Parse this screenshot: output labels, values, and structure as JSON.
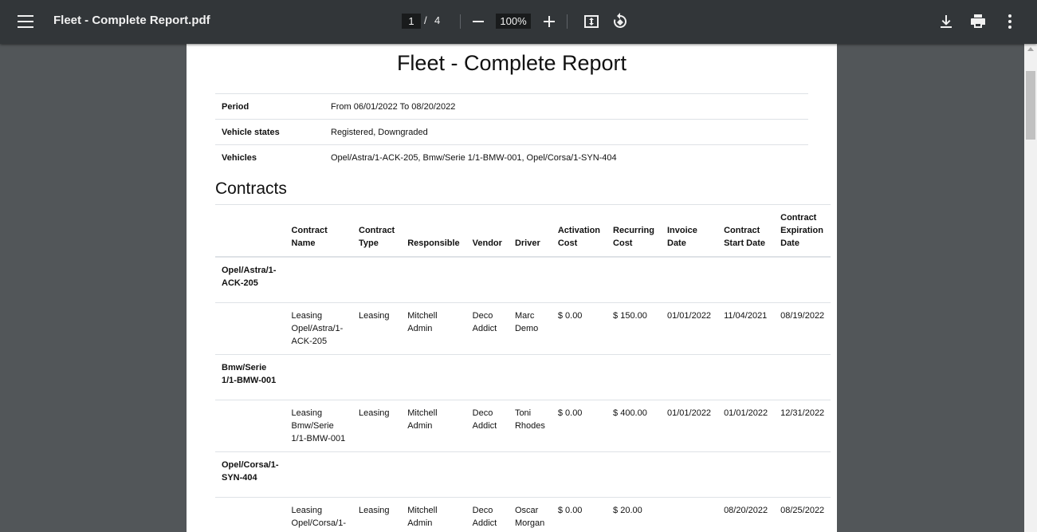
{
  "toolbar": {
    "title": "Fleet - Complete Report.pdf",
    "page_current": "1",
    "page_sep": "/",
    "page_total": "4",
    "zoom": "100%",
    "icons": [
      "menu-icon",
      "zoom-out-icon",
      "zoom-in-icon",
      "fit-page-icon",
      "rotate-icon",
      "download-icon",
      "print-icon",
      "more-icon"
    ]
  },
  "document": {
    "title": "Fleet - Complete Report",
    "summary": [
      {
        "key": "Period",
        "value": "From 06/01/2022 To 08/20/2022"
      },
      {
        "key": "Vehicle states",
        "value": "Registered, Downgraded"
      },
      {
        "key": "Vehicles",
        "value": "Opel/Astra/1-ACK-205, Bmw/Serie 1/1-BMW-001, Opel/Corsa/1-SYN-404"
      }
    ],
    "section_title": "Contracts",
    "headers": [
      "",
      "Contract Name",
      "Contract Type",
      "Responsible",
      "Vendor",
      "Driver",
      "Activation Cost",
      "Recurring Cost",
      "Invoice Date",
      "Contract Start Date",
      "Contract Expiration Date"
    ],
    "groups": [
      {
        "vehicle": "Opel/Astra/1-ACK-205",
        "row": [
          "Leasing Opel/Astra/1-ACK-205",
          "Leasing",
          "Mitchell Admin",
          "Deco Addict",
          "Marc Demo",
          "$ 0.00",
          "$ 150.00",
          "01/01/2022",
          "11/04/2021",
          "08/19/2022"
        ]
      },
      {
        "vehicle": "Bmw/Serie 1/1-BMW-001",
        "row": [
          "Leasing Bmw/Serie 1/1-BMW-001",
          "Leasing",
          "Mitchell Admin",
          "Deco Addict",
          "Toni Rhodes",
          "$ 0.00",
          "$ 400.00",
          "01/01/2022",
          "01/01/2022",
          "12/31/2022"
        ]
      },
      {
        "vehicle": "Opel/Corsa/1-SYN-404",
        "row": [
          "Leasing Opel/Corsa/1-",
          "Leasing",
          "Mitchell Admin",
          "Deco Addict",
          "Oscar Morgan",
          "$ 0.00",
          "$ 20.00",
          "",
          "08/20/2022",
          "08/25/2022"
        ]
      }
    ]
  }
}
